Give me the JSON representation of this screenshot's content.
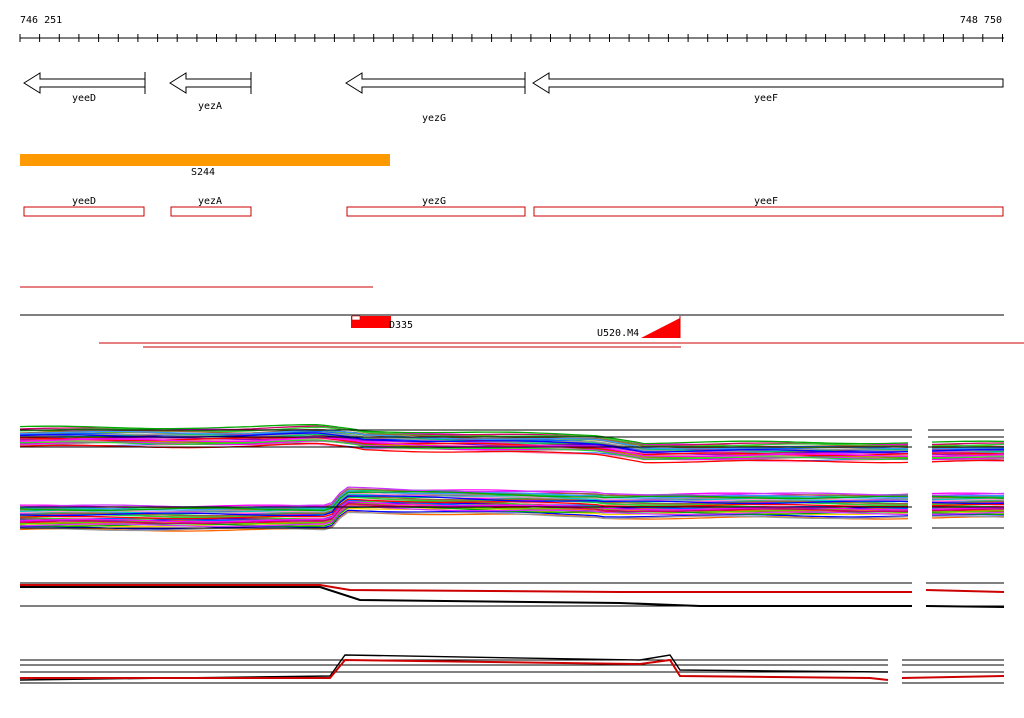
{
  "coordinates": {
    "start": "746 251",
    "end": "748 750"
  },
  "genes_arrows": [
    {
      "label": "yeeD",
      "strand": "-"
    },
    {
      "label": "yezA",
      "strand": "-"
    },
    {
      "label": "yezG",
      "strand": "-"
    },
    {
      "label": "yeeF",
      "strand": "-"
    }
  ],
  "segment": {
    "label": "S244",
    "color": "#ff9900"
  },
  "gene_boxes": [
    "yeeD",
    "yezA",
    "yezG",
    "yeeF"
  ],
  "features": [
    {
      "label": "D335",
      "color": "#ff0000"
    },
    {
      "label": "U520.M4",
      "color": "#ff0000"
    }
  ],
  "colors": {
    "gene": "#000000",
    "box": "#cc0000",
    "accent": "#ff0000",
    "segment": "#ff9900"
  },
  "tracks": [
    {
      "name": "expression-profiles-a"
    },
    {
      "name": "expression-profiles-b"
    },
    {
      "name": "expression-profiles-c"
    },
    {
      "name": "expression-profiles-d"
    }
  ]
}
